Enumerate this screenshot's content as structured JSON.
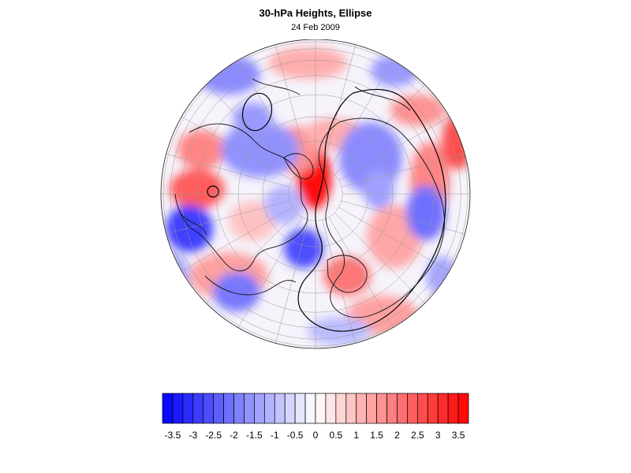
{
  "title": "30-hPa Heights, Ellipse",
  "subtitle": "24 Feb 2009",
  "colorbar": {
    "min": -3.75,
    "max": 3.75,
    "step": 0.25,
    "tick_labels": [
      "-3.5",
      "-3",
      "-2.5",
      "-2",
      "-1.5",
      "-1",
      "-0.5",
      "0",
      "0.5",
      "1",
      "1.5",
      "2",
      "2.5",
      "3",
      "3.5"
    ],
    "tick_values": [
      -3.5,
      -3,
      -2.5,
      -2,
      -1.5,
      -1,
      -0.5,
      0,
      0.5,
      1,
      1.5,
      2,
      2.5,
      3,
      3.5
    ],
    "low_color": "#0000ff",
    "mid_color": "#ffffff",
    "high_color": "#ff0000"
  },
  "map": {
    "projection": "orthographic-polar",
    "hemisphere": "northern",
    "graticule": "on",
    "coastlines": "on",
    "ellipse_outline": "on"
  }
}
